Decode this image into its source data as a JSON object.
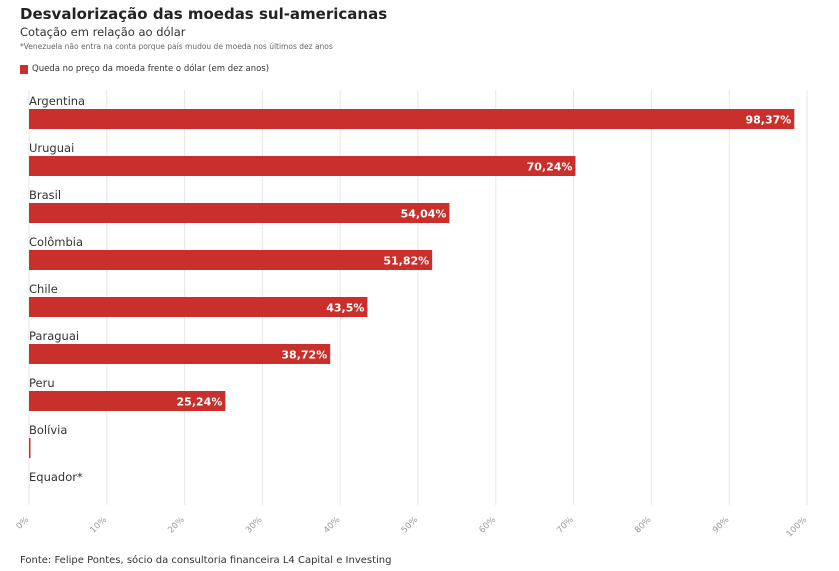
{
  "title": "Desvalorização das moedas sul-americanas",
  "subtitle": "Cotação em relação ao dólar",
  "note": "*Venezuela não entra na conta porque país mudou de moeda nos últimos dez anos",
  "legend": {
    "label": "Queda no preço da moeda frente o dólar (em dez anos)",
    "color": "#c9302c"
  },
  "source": "Fonte: Felipe Pontes, sócio da consultoria financeira L4 Capital e Investing",
  "chart_data": {
    "type": "bar",
    "orientation": "horizontal",
    "categories": [
      "Argentina",
      "Uruguai",
      "Brasil",
      "Colômbia",
      "Chile",
      "Paraguai",
      "Peru",
      "Bolívia",
      "Equador*"
    ],
    "values": [
      98.37,
      70.24,
      54.04,
      51.82,
      43.5,
      38.72,
      25.24,
      0,
      null
    ],
    "data_labels": [
      "98,37%",
      "70,24%",
      "54,04%",
      "51,82%",
      "43,5%",
      "38,72%",
      "25,24%",
      "",
      ""
    ],
    "xlim": [
      0,
      100
    ],
    "x_ticks": [
      "0%",
      "10%",
      "20%",
      "30%",
      "40%",
      "50%",
      "60%",
      "70%",
      "80%",
      "90%",
      "100%"
    ],
    "grid": true,
    "legend_position": "top-left",
    "color": "#c9302c"
  }
}
